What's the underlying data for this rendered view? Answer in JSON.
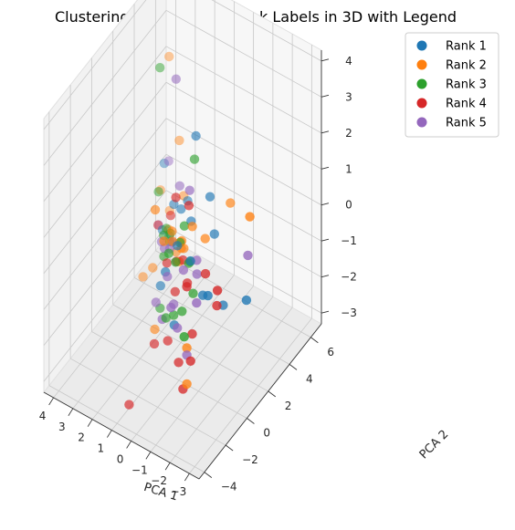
{
  "chart_data": {
    "type": "scatter3d",
    "title": "Clustering with Original Rank Labels in 3D with Legend",
    "xlabel": "PCA 1",
    "ylabel": "PCA 2",
    "zlabel": "",
    "xlim": [
      -3.5,
      4.5
    ],
    "ylim": [
      -4.5,
      7
    ],
    "zlim": [
      -3.3,
      4.3
    ],
    "xticks": [
      "−3",
      "−2",
      "−1",
      "0",
      "1",
      "2",
      "3",
      "4"
    ],
    "yticks": [
      "−4",
      "−2",
      "0",
      "2",
      "4",
      "6"
    ],
    "zticks": [
      "−3",
      "−2",
      "−1",
      "0",
      "1",
      "2",
      "3",
      "4"
    ],
    "grid": true,
    "legend_position": "top-right",
    "series": [
      {
        "name": "Rank 1",
        "color": "#1f77b4",
        "points": [
          [
            -3.2,
            0.5,
            -0.3
          ],
          [
            -2.2,
            -1.3,
            0.2
          ],
          [
            -2.0,
            0.5,
            -0.8
          ],
          [
            -1.5,
            -0.5,
            -0.3
          ],
          [
            -1.0,
            1.5,
            0.5
          ],
          [
            -0.5,
            2.0,
            1.2
          ],
          [
            0.5,
            2.5,
            2.4
          ],
          [
            1.2,
            3.0,
            0.2
          ],
          [
            1.8,
            2.8,
            0.0
          ],
          [
            0.3,
            0.4,
            0.2
          ],
          [
            0.7,
            0.0,
            -0.5
          ],
          [
            1.5,
            1.0,
            -1.5
          ],
          [
            2.5,
            3.0,
            -1.0
          ],
          [
            -0.3,
            -1.0,
            -1.3
          ],
          [
            3.5,
            5.0,
            -0.2
          ],
          [
            2.7,
            4.0,
            -1.6
          ],
          [
            -0.7,
            -0.2,
            0.3
          ],
          [
            0.2,
            1.5,
            0.5
          ],
          [
            1.1,
            2.2,
            0.3
          ]
        ]
      },
      {
        "name": "Rank 2",
        "color": "#ff7f0e",
        "points": [
          [
            -3.1,
            1.0,
            1.8
          ],
          [
            -1.0,
            3.0,
            0.8
          ],
          [
            -0.3,
            0.7,
            0.8
          ],
          [
            1.5,
            0.5,
            0.8
          ],
          [
            0.8,
            0.8,
            0.3
          ],
          [
            0.3,
            1.0,
            -0.1
          ],
          [
            0.0,
            0.0,
            0.0
          ],
          [
            0.6,
            1.3,
            -0.3
          ],
          [
            1.5,
            3.0,
            -1.0
          ],
          [
            2.3,
            3.2,
            -1.0
          ],
          [
            3.8,
            6.0,
            2.3
          ],
          [
            3.0,
            5.5,
            0.4
          ],
          [
            2.5,
            5.0,
            -0.8
          ],
          [
            1.8,
            3.0,
            -1.4
          ],
          [
            3.5,
            5.5,
            -1.7
          ],
          [
            3.7,
            5.0,
            -1.0
          ],
          [
            3.0,
            3.0,
            -2.2
          ],
          [
            1.8,
            1.0,
            -2.8
          ],
          [
            3.5,
            3.0,
            -2.6
          ],
          [
            -1.5,
            -2.0,
            -1.2
          ],
          [
            -1.5,
            -2.0,
            -2.2
          ],
          [
            0.5,
            -0.5,
            0.6
          ],
          [
            -0.8,
            1.0,
            0.5
          ],
          [
            0.5,
            0.3,
            0.3
          ],
          [
            1.0,
            2.0,
            -0.5
          ]
        ]
      },
      {
        "name": "Rank 3",
        "color": "#2ca02c",
        "points": [
          [
            0.3,
            2.0,
            2.0
          ],
          [
            0.0,
            0.5,
            0.8
          ],
          [
            -0.5,
            0.0,
            0.1
          ],
          [
            0.5,
            1.0,
            0.0
          ],
          [
            -1.0,
            -0.5,
            -0.4
          ],
          [
            1.0,
            1.0,
            0.1
          ],
          [
            1.3,
            1.5,
            -0.4
          ],
          [
            -0.3,
            0.5,
            -0.1
          ],
          [
            -0.7,
            -1.0,
            -0.8
          ],
          [
            2.0,
            2.2,
            -0.7
          ],
          [
            2.7,
            3.0,
            0.0
          ],
          [
            0.0,
            -0.5,
            -1.3
          ],
          [
            1.6,
            1.5,
            -0.9
          ],
          [
            2.3,
            3.0,
            -0.9
          ],
          [
            2.9,
            3.5,
            3.2
          ],
          [
            -1.8,
            -2.8,
            -0.5
          ],
          [
            0.4,
            -0.5,
            -1.5
          ],
          [
            1.8,
            1.5,
            -2.4
          ],
          [
            -0.1,
            -0.5,
            0.2
          ],
          [
            0.8,
            0.5,
            -0.2
          ]
        ]
      },
      {
        "name": "Rank 4",
        "color": "#d62728",
        "points": [
          [
            -2.5,
            -1.0,
            -0.1
          ],
          [
            -1.5,
            -2.0,
            0.5
          ],
          [
            -0.4,
            0.2,
            1.6
          ],
          [
            0.6,
            0.8,
            1.3
          ],
          [
            -1.8,
            -0.8,
            0.5
          ],
          [
            -0.7,
            -0.5,
            -0.2
          ],
          [
            0.4,
            0.5,
            -0.3
          ],
          [
            1.8,
            2.5,
            -0.2
          ],
          [
            -2.8,
            -1.5,
            0.6
          ],
          [
            -1.5,
            -1.5,
            -1.0
          ],
          [
            -1.3,
            -2.0,
            -2.4
          ],
          [
            0.2,
            0.0,
            -0.9
          ],
          [
            3.0,
            3.5,
            -1.2
          ],
          [
            0.2,
            -0.7,
            -2.0
          ],
          [
            -0.8,
            -1.5,
            -2.0
          ],
          [
            1.0,
            -0.5,
            -2.4
          ],
          [
            1.2,
            -2.5,
            -3.4
          ],
          [
            -1.8,
            -2.2,
            -1.4
          ],
          [
            0.9,
            0.5,
            -0.5
          ],
          [
            -0.2,
            0.0,
            0.1
          ]
        ]
      },
      {
        "name": "Rank 5",
        "color": "#9467bd",
        "points": [
          [
            -3.0,
            1.0,
            0.7
          ],
          [
            -1.2,
            -0.5,
            0.2
          ],
          [
            0.0,
            1.0,
            1.6
          ],
          [
            1.8,
            3.0,
            3.4
          ],
          [
            -0.8,
            0.2,
            0.2
          ],
          [
            -0.5,
            -0.5,
            0.1
          ],
          [
            0.8,
            0.8,
            0.0
          ],
          [
            1.3,
            1.5,
            -0.6
          ],
          [
            3.0,
            4.5,
            0.2
          ],
          [
            1.5,
            2.8,
            0.6
          ],
          [
            3.8,
            5.0,
            -2.0
          ],
          [
            0.0,
            -0.5,
            -1.0
          ],
          [
            0.6,
            0.0,
            -0.6
          ],
          [
            -0.9,
            -1.8,
            -0.9
          ],
          [
            0.7,
            -0.3,
            -1.7
          ],
          [
            1.3,
            0.2,
            -1.6
          ],
          [
            -0.3,
            -1.3,
            -0.7
          ],
          [
            -2.0,
            -2.0,
            0.2
          ],
          [
            2.0,
            2.0,
            -0.8
          ],
          [
            -1.5,
            -2.0,
            -1.4
          ],
          [
            1.3,
            1.0,
            -0.4
          ]
        ]
      }
    ]
  }
}
